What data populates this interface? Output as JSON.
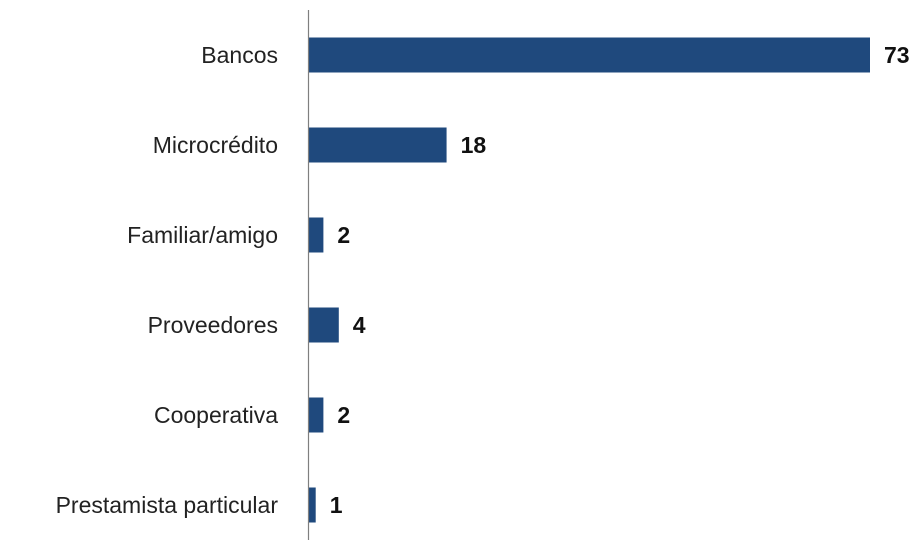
{
  "chart_data": {
    "type": "bar",
    "orientation": "horizontal",
    "title": "",
    "xlabel": "",
    "ylabel": "",
    "categories": [
      "Bancos",
      "Microcrédito",
      "Familiar/amigo",
      "Proveedores",
      "Cooperativa",
      "Prestamista particular"
    ],
    "values": [
      73,
      18,
      2,
      4,
      2,
      1
    ],
    "data_labels": [
      "73",
      "18",
      "2",
      "4",
      "2",
      "1"
    ],
    "xlim": [
      0,
      73
    ],
    "grid": false,
    "legend": "none",
    "bar_color": "#1f497d",
    "axis_color": "#7f7f7f"
  }
}
